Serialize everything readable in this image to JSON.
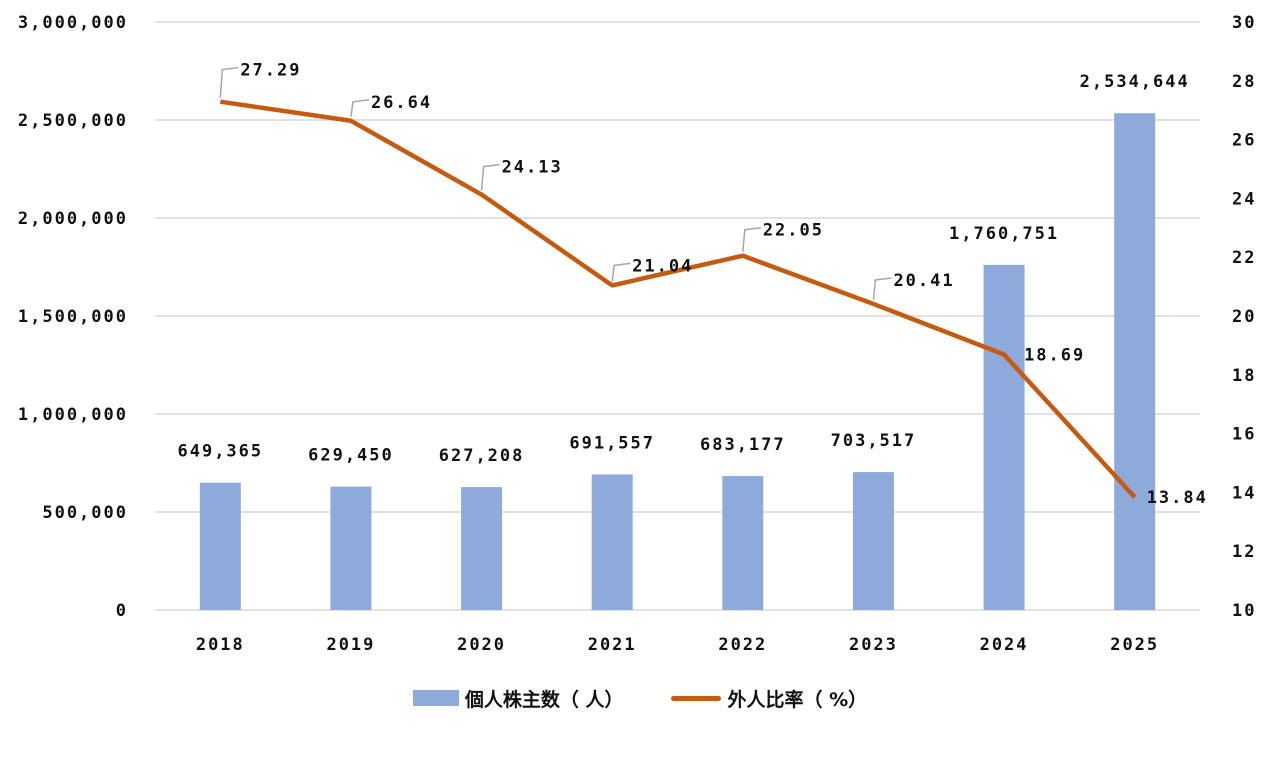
{
  "chart_data": {
    "type": "bar+line",
    "title": "",
    "categories": [
      "2018",
      "2019",
      "2020",
      "2021",
      "2022",
      "2023",
      "2024",
      "2025"
    ],
    "series": [
      {
        "name": "個人株主数（人）",
        "type": "bar",
        "axis": "left",
        "color": "#8eaadb",
        "values": [
          649365,
          629450,
          627208,
          691557,
          683177,
          703517,
          1760751,
          2534644
        ],
        "labels": [
          "649,365",
          "629,450",
          "627,208",
          "691,557",
          "683,177",
          "703,517",
          "1,760,751",
          "2,534,644"
        ]
      },
      {
        "name": "外人比率（%）",
        "type": "line",
        "axis": "right",
        "color": "#c55a11",
        "values": [
          27.29,
          26.64,
          24.13,
          21.04,
          22.05,
          20.41,
          18.69,
          13.84
        ],
        "labels": [
          "27.29",
          "26.64",
          "24.13",
          "21.04",
          "22.05",
          "20.41",
          "18.69",
          "13.84"
        ]
      }
    ],
    "left_axis": {
      "ylim": [
        0,
        3000000
      ],
      "ticks": [
        0,
        500000,
        1000000,
        1500000,
        2000000,
        2500000,
        3000000
      ],
      "tick_labels": [
        "0",
        "500,000",
        "1,000,000",
        "1,500,000",
        "2,000,000",
        "2,500,000",
        "3,000,000"
      ]
    },
    "right_axis": {
      "ylim": [
        10,
        30
      ],
      "ticks": [
        10,
        12,
        14,
        16,
        18,
        20,
        22,
        24,
        26,
        28,
        30
      ],
      "tick_labels": [
        "10",
        "12",
        "14",
        "16",
        "18",
        "20",
        "22",
        "24",
        "26",
        "28",
        "30"
      ]
    },
    "xlabel": "",
    "ylabel": "",
    "grid": true,
    "legend_position": "bottom"
  },
  "legend": {
    "bar_label": "個人株主数（ 人）",
    "line_label": "外人比率（ %）"
  }
}
